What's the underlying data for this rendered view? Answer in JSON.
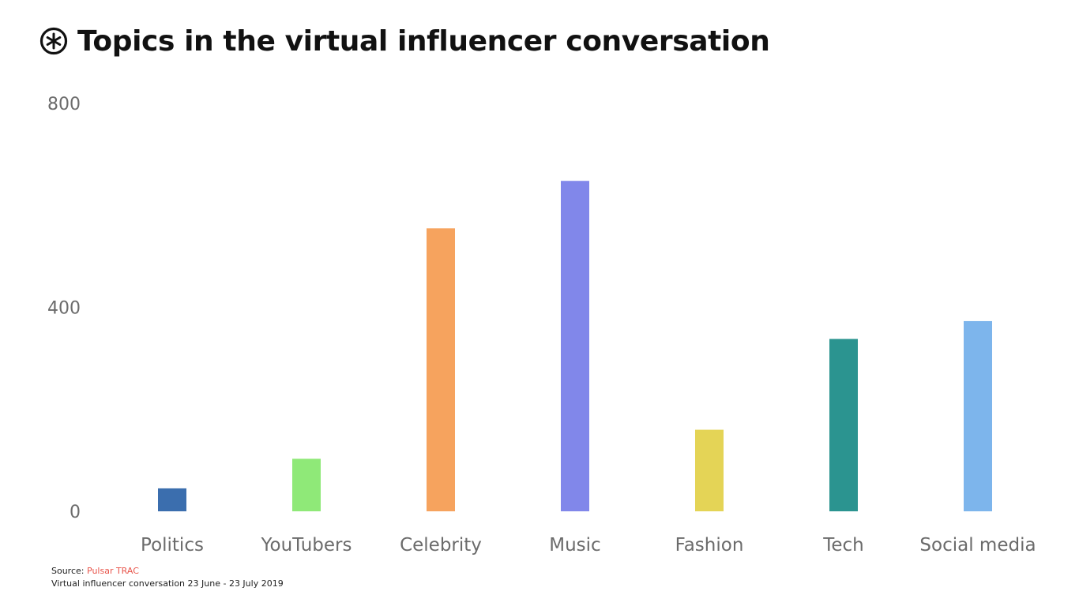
{
  "header": {
    "title": "Topics in the virtual influencer conversation",
    "logo_icon": "pulsar-asterisk-logo-icon"
  },
  "footer": {
    "source_label": "Source:",
    "source_name": "Pulsar TRAC",
    "note": "Virtual influencer conversation 23 June - 23 July 2019"
  },
  "colors": {
    "source_name": "#e8544a",
    "tick_text": "#6b6b6b"
  },
  "chart_data": {
    "type": "bar",
    "title": "Topics in the virtual influencer conversation",
    "xlabel": "",
    "ylabel": "",
    "ylim": [
      0,
      800
    ],
    "yticks": [
      0,
      400,
      800
    ],
    "grid": false,
    "categories": [
      "Politics",
      "YouTubers",
      "Celebrity",
      "Music",
      "Fashion",
      "Tech",
      "Social media"
    ],
    "values": [
      45,
      103,
      555,
      648,
      160,
      338,
      373
    ],
    "colors": [
      "#3b6eae",
      "#8fe978",
      "#f6a35e",
      "#8187ea",
      "#e4d456",
      "#2b9490",
      "#7db5ec"
    ]
  }
}
